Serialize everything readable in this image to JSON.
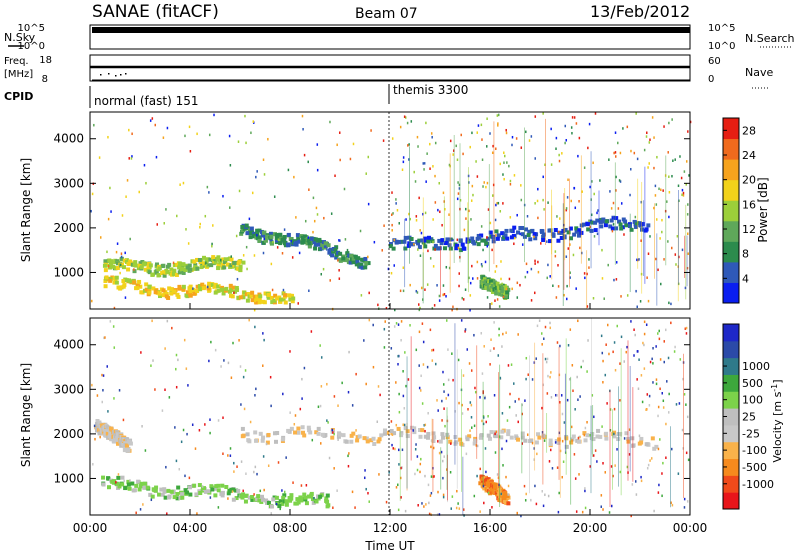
{
  "header": {
    "station": "SANAE (fitACF)",
    "beam": "Beam 07",
    "date": "13/Feb/2012"
  },
  "strips": {
    "nsky_label": "N.Sky",
    "nsky_ticks": [
      "10^5",
      "10^0"
    ],
    "nsearch_label": "N.Search",
    "nsearch_ticks": [
      "10^5",
      "10^0"
    ],
    "freq_label": "Freq.",
    "freq_unit": "[MHz]",
    "freq_ticks": [
      "18",
      "8"
    ],
    "nave_label": "Nave",
    "nave_ticks": [
      "60",
      "0"
    ],
    "cpid_label": "CPID",
    "cpid_modes": [
      {
        "label": "normal (fast) 151",
        "start_hour": 0
      },
      {
        "label": "themis 3300",
        "start_hour": 12
      }
    ]
  },
  "colors": {
    "power": [
      "#0a1ef0",
      "#2f59b8",
      "#2c8b4d",
      "#5fa85a",
      "#9ccf3a",
      "#f2d21a",
      "#f6a31d",
      "#f06a1d",
      "#e61e12"
    ],
    "velocity": [
      "#e8151a",
      "#f04a1a",
      "#f68a1d",
      "#f9b24a",
      "#c8c8c8",
      "#bfbfbf",
      "#7cd24a",
      "#3da83c",
      "#2f7a8a",
      "#2b4aa8",
      "#1e28c8"
    ]
  },
  "chart_data": [
    {
      "type": "heatmap",
      "name": "power",
      "ylabel": "Slant Range [km]",
      "yticks": [
        1000,
        2000,
        3000,
        4000
      ],
      "ylim": [
        180,
        4600
      ],
      "xlim": [
        0,
        24
      ],
      "colorbar": {
        "label": "Power [dB]",
        "ticks": [
          "4",
          "8",
          "12",
          "16",
          "20",
          "24",
          "28"
        ],
        "range": [
          0,
          30
        ]
      },
      "features": [
        {
          "start_h": 6.0,
          "end_h": 11.0,
          "range_start_km": 2050,
          "range_end_km": 1300,
          "value": 6
        },
        {
          "start_h": 12.0,
          "end_h": 22.2,
          "range_start_km": 1600,
          "range_end_km": 2150,
          "value": 4
        },
        {
          "start_h": 0.5,
          "end_h": 6.0,
          "range_start_km": 1150,
          "range_end_km": 1200,
          "value": 14
        },
        {
          "start_h": 0.5,
          "end_h": 8.0,
          "range_start_km": 750,
          "range_end_km": 500,
          "value": 20
        },
        {
          "start_h": 15.6,
          "end_h": 16.6,
          "range_start_km": 850,
          "range_end_km": 500,
          "value": 10
        }
      ]
    },
    {
      "type": "heatmap",
      "name": "velocity",
      "ylabel": "Slant Range [km]",
      "yticks": [
        1000,
        2000,
        3000,
        4000
      ],
      "ylim": [
        180,
        4600
      ],
      "xlim": [
        0,
        24
      ],
      "xticks": [
        "00:00",
        "04:00",
        "08:00",
        "12:00",
        "16:00",
        "20:00",
        "00:00"
      ],
      "xlabel": "Time UT",
      "colorbar": {
        "label": "Velocity [m s^-1]",
        "ticks": [
          "-1000",
          "-500",
          "-100",
          "-25",
          "25",
          "100",
          "500",
          "1000"
        ]
      },
      "features": [
        {
          "start_h": 6.0,
          "end_h": 22.5,
          "range_start_km": 2050,
          "range_end_km": 1900,
          "value": 0
        },
        {
          "start_h": 0.2,
          "end_h": 1.5,
          "range_start_km": 2200,
          "range_end_km": 1700,
          "value": 0
        },
        {
          "start_h": 0.5,
          "end_h": 9.5,
          "range_start_km": 900,
          "range_end_km": 500,
          "value": 100
        },
        {
          "start_h": 15.6,
          "end_h": 16.6,
          "range_start_km": 1000,
          "range_end_km": 500,
          "value": -500
        }
      ]
    }
  ]
}
